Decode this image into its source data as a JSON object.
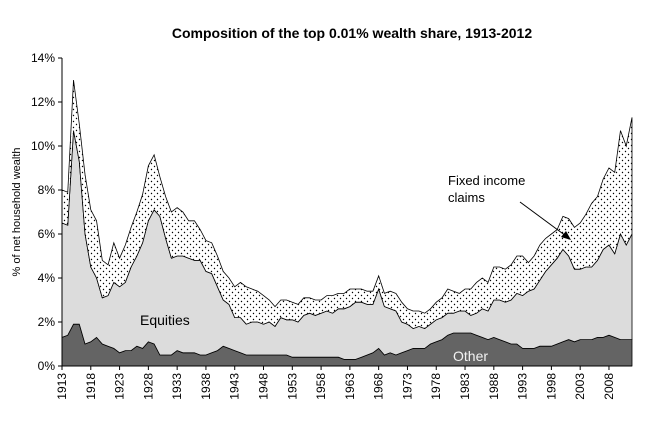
{
  "chart_data": {
    "type": "stacked_area",
    "title": "Composition of the top 0.01% wealth share, 1913-2012",
    "y_label": "% of net household wealth",
    "x": [
      1913,
      1914,
      1915,
      1916,
      1917,
      1918,
      1919,
      1920,
      1921,
      1922,
      1923,
      1924,
      1925,
      1926,
      1927,
      1928,
      1929,
      1930,
      1931,
      1932,
      1933,
      1934,
      1935,
      1936,
      1937,
      1938,
      1939,
      1940,
      1941,
      1942,
      1943,
      1944,
      1945,
      1946,
      1947,
      1948,
      1949,
      1950,
      1951,
      1952,
      1953,
      1954,
      1955,
      1956,
      1957,
      1958,
      1959,
      1960,
      1961,
      1962,
      1963,
      1964,
      1965,
      1966,
      1967,
      1968,
      1969,
      1970,
      1971,
      1972,
      1973,
      1974,
      1975,
      1976,
      1977,
      1978,
      1979,
      1980,
      1981,
      1982,
      1983,
      1984,
      1985,
      1986,
      1987,
      1988,
      1989,
      1990,
      1991,
      1992,
      1993,
      1994,
      1995,
      1996,
      1997,
      1998,
      1999,
      2000,
      2001,
      2002,
      2003,
      2004,
      2005,
      2006,
      2007,
      2008,
      2009,
      2010,
      2011,
      2012
    ],
    "xlim": [
      1913,
      2012
    ],
    "xticks": [
      1913,
      1918,
      1923,
      1928,
      1933,
      1938,
      1943,
      1948,
      1953,
      1958,
      1963,
      1968,
      1973,
      1978,
      1983,
      1988,
      1993,
      1998,
      2003,
      2008
    ],
    "ylim": [
      0,
      14
    ],
    "yticks": [
      {
        "value": 0,
        "label": "0%"
      },
      {
        "value": 2,
        "label": "2%"
      },
      {
        "value": 4,
        "label": "4%"
      },
      {
        "value": 6,
        "label": "6%"
      },
      {
        "value": 8,
        "label": "8%"
      },
      {
        "value": 10,
        "label": "10%"
      },
      {
        "value": 12,
        "label": "12%"
      },
      {
        "value": 14,
        "label": "14%"
      }
    ],
    "grid": false,
    "series": [
      {
        "name": "Other",
        "color": "#646464",
        "values": [
          1.3,
          1.4,
          1.9,
          1.9,
          1.0,
          1.1,
          1.3,
          1.0,
          0.9,
          0.8,
          0.6,
          0.7,
          0.7,
          0.9,
          0.8,
          1.1,
          1.0,
          0.5,
          0.5,
          0.5,
          0.7,
          0.6,
          0.6,
          0.6,
          0.5,
          0.5,
          0.6,
          0.7,
          0.9,
          0.8,
          0.7,
          0.6,
          0.5,
          0.5,
          0.5,
          0.5,
          0.5,
          0.5,
          0.5,
          0.5,
          0.4,
          0.4,
          0.4,
          0.4,
          0.4,
          0.4,
          0.4,
          0.4,
          0.4,
          0.3,
          0.3,
          0.3,
          0.4,
          0.5,
          0.6,
          0.8,
          0.5,
          0.6,
          0.5,
          0.6,
          0.7,
          0.8,
          0.8,
          0.8,
          1.0,
          1.1,
          1.2,
          1.4,
          1.5,
          1.5,
          1.5,
          1.5,
          1.4,
          1.3,
          1.2,
          1.3,
          1.2,
          1.1,
          1.0,
          1.0,
          0.8,
          0.8,
          0.8,
          0.9,
          0.9,
          0.9,
          1.0,
          1.1,
          1.2,
          1.1,
          1.2,
          1.2,
          1.2,
          1.3,
          1.3,
          1.4,
          1.3,
          1.2,
          1.2,
          1.2
        ]
      },
      {
        "name": "Equities",
        "color": "#dcdcdc",
        "values": [
          5.2,
          5.0,
          8.8,
          7.4,
          5.0,
          3.4,
          2.7,
          2.1,
          2.3,
          3.0,
          3.0,
          3.1,
          3.8,
          4.1,
          4.8,
          5.5,
          6.1,
          6.3,
          5.3,
          4.4,
          4.3,
          4.4,
          4.3,
          4.2,
          4.3,
          3.8,
          3.6,
          2.9,
          2.1,
          2.0,
          1.5,
          1.6,
          1.4,
          1.5,
          1.5,
          1.4,
          1.5,
          1.3,
          1.7,
          1.6,
          1.7,
          1.6,
          1.9,
          2.0,
          1.9,
          2.0,
          2.1,
          2.0,
          2.2,
          2.3,
          2.4,
          2.6,
          2.5,
          2.3,
          2.2,
          2.7,
          2.2,
          2.0,
          2.0,
          1.4,
          1.2,
          0.9,
          1.0,
          0.9,
          0.9,
          1.0,
          1.0,
          1.0,
          0.9,
          1.0,
          1.0,
          0.8,
          1.0,
          1.3,
          1.3,
          1.7,
          1.8,
          1.8,
          2.0,
          2.3,
          2.4,
          2.6,
          2.7,
          3.0,
          3.4,
          3.7,
          3.9,
          4.2,
          3.8,
          3.3,
          3.2,
          3.3,
          3.3,
          3.5,
          4.0,
          4.1,
          3.8,
          4.8,
          4.3,
          4.8
        ]
      },
      {
        "name": "Fixed income claims",
        "color": "#000000",
        "pattern": "dots",
        "values": [
          1.5,
          1.5,
          2.3,
          1.7,
          2.7,
          2.6,
          2.6,
          1.7,
          1.4,
          1.8,
          1.3,
          1.7,
          1.8,
          2.0,
          2.2,
          2.5,
          2.5,
          1.8,
          1.9,
          2.1,
          2.2,
          2.0,
          1.7,
          1.8,
          1.4,
          1.4,
          1.4,
          1.4,
          1.3,
          1.2,
          1.4,
          1.6,
          1.7,
          1.5,
          1.4,
          1.3,
          1.0,
          0.9,
          0.8,
          0.9,
          0.8,
          0.8,
          0.8,
          0.7,
          0.7,
          0.6,
          0.7,
          0.8,
          0.7,
          0.7,
          0.8,
          0.6,
          0.6,
          0.6,
          0.6,
          0.6,
          0.6,
          0.8,
          0.8,
          0.9,
          0.7,
          0.8,
          0.7,
          0.7,
          0.7,
          0.8,
          0.9,
          1.1,
          1.0,
          0.8,
          1.0,
          1.2,
          1.4,
          1.4,
          1.3,
          1.5,
          1.5,
          1.5,
          1.6,
          1.7,
          1.8,
          1.3,
          1.5,
          1.6,
          1.5,
          1.4,
          1.3,
          1.5,
          1.7,
          1.9,
          2.1,
          2.4,
          2.9,
          2.9,
          3.2,
          3.5,
          3.7,
          4.7,
          4.5,
          5.3
        ]
      }
    ]
  }
}
